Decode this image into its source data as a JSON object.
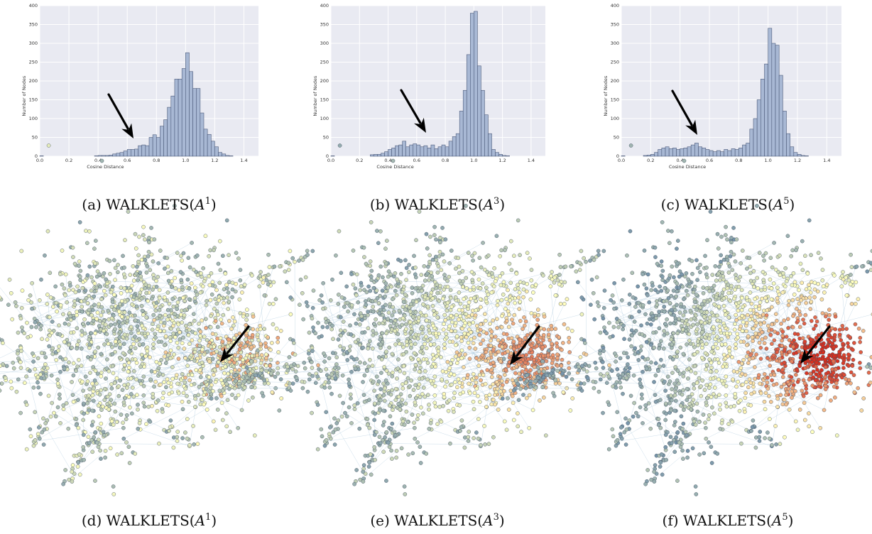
{
  "captions": {
    "a": {
      "prefix": "(a) ",
      "name": "WALKLETS",
      "base": "A",
      "sup": "1"
    },
    "b": {
      "prefix": "(b) ",
      "name": "WALKLETS",
      "base": "A",
      "sup": "3"
    },
    "c": {
      "prefix": "(c) ",
      "name": "WALKLETS",
      "base": "A",
      "sup": "5"
    },
    "d": {
      "prefix": "(d) ",
      "name": "WALKLETS",
      "base": "A",
      "sup": "1"
    },
    "e": {
      "prefix": "(e) ",
      "name": "WALKLETS",
      "base": "A",
      "sup": "3"
    },
    "f": {
      "prefix": "(f) ",
      "name": "WALKLETS",
      "base": "A",
      "sup": "5"
    }
  },
  "colors": {
    "plot_bg": "#e9eaf2",
    "grid": "#ffffff",
    "bar_fill": "#a8b8d4",
    "bar_edge": "#4c5a7a",
    "arrow": "#000000",
    "node_cool": "#5b7fa6",
    "node_mid": "#ffffbf",
    "node_hot": "#d7301f",
    "edge": "#a8c6dc"
  },
  "chart_data": [
    {
      "type": "bar",
      "panel": "a",
      "xlabel": "Cosine Distance",
      "ylabel": "Number of Nodes",
      "xlim": [
        0.0,
        1.5
      ],
      "ylim": [
        0,
        400
      ],
      "xticks": [
        "0.0",
        "0.2",
        "0.4",
        "0.6",
        "0.8",
        "1.0",
        "1.2",
        "1.4"
      ],
      "yticks": [
        "0",
        "50",
        "100",
        "150",
        "200",
        "250",
        "300",
        "350",
        "400"
      ],
      "grid": true,
      "bins": [
        0.0,
        0.025,
        0.05,
        0.075,
        0.1,
        0.125,
        0.15,
        0.175,
        0.2,
        0.225,
        0.25,
        0.275,
        0.3,
        0.325,
        0.35,
        0.375,
        0.4,
        0.425,
        0.45,
        0.475,
        0.5,
        0.525,
        0.55,
        0.575,
        0.6,
        0.625,
        0.65,
        0.675,
        0.7,
        0.725,
        0.75,
        0.775,
        0.8,
        0.825,
        0.85,
        0.875,
        0.9,
        0.925,
        0.95,
        0.975,
        1.0,
        1.025,
        1.05,
        1.075,
        1.1,
        1.125,
        1.15,
        1.175,
        1.2,
        1.225,
        1.25,
        1.275,
        1.3
      ],
      "values": [
        1,
        0,
        0,
        0,
        0,
        0,
        0,
        0,
        0,
        0,
        0,
        0,
        0,
        0,
        0,
        1,
        2,
        2,
        2,
        3,
        6,
        8,
        10,
        14,
        18,
        18,
        19,
        28,
        30,
        28,
        50,
        57,
        50,
        80,
        97,
        130,
        160,
        205,
        205,
        233,
        275,
        225,
        180,
        180,
        115,
        72,
        58,
        40,
        25,
        10,
        6,
        2,
        1
      ]
    },
    {
      "type": "bar",
      "panel": "b",
      "xlabel": "Cosine Distance",
      "ylabel": "Number of Nodes",
      "xlim": [
        0.0,
        1.5
      ],
      "ylim": [
        0,
        400
      ],
      "xticks": [
        "0.0",
        "0.2",
        "0.4",
        "0.6",
        "0.8",
        "1.0",
        "1.2",
        "1.4"
      ],
      "yticks": [
        "0",
        "50",
        "100",
        "150",
        "200",
        "250",
        "300",
        "350",
        "400"
      ],
      "grid": true,
      "bins": [
        0.0,
        0.025,
        0.05,
        0.075,
        0.1,
        0.125,
        0.15,
        0.175,
        0.2,
        0.225,
        0.25,
        0.275,
        0.3,
        0.325,
        0.35,
        0.375,
        0.4,
        0.425,
        0.45,
        0.475,
        0.5,
        0.525,
        0.55,
        0.575,
        0.6,
        0.625,
        0.65,
        0.675,
        0.7,
        0.725,
        0.75,
        0.775,
        0.8,
        0.825,
        0.85,
        0.875,
        0.9,
        0.925,
        0.95,
        0.975,
        1.0,
        1.025,
        1.05,
        1.075,
        1.1,
        1.125,
        1.15,
        1.175,
        1.2,
        1.225,
        1.25,
        1.275
      ],
      "values": [
        1,
        0,
        0,
        0,
        0,
        0,
        0,
        0,
        0,
        0,
        0,
        4,
        5,
        5,
        8,
        12,
        18,
        22,
        28,
        30,
        40,
        25,
        30,
        33,
        30,
        25,
        28,
        22,
        30,
        20,
        25,
        30,
        25,
        40,
        52,
        60,
        120,
        175,
        270,
        380,
        385,
        240,
        175,
        110,
        60,
        18,
        10,
        5,
        2,
        1,
        0,
        0
      ]
    },
    {
      "type": "bar",
      "panel": "c",
      "xlabel": "Cosine Distance",
      "ylabel": "Number of Nodes",
      "xlim": [
        0.0,
        1.5
      ],
      "ylim": [
        0,
        400
      ],
      "xticks": [
        "0.0",
        "0.2",
        "0.4",
        "0.6",
        "0.8",
        "1.0",
        "1.2",
        "1.4"
      ],
      "yticks": [
        "0",
        "50",
        "100",
        "150",
        "200",
        "250",
        "300",
        "350",
        "400"
      ],
      "grid": true,
      "bins": [
        0.0,
        0.025,
        0.05,
        0.075,
        0.1,
        0.125,
        0.15,
        0.175,
        0.2,
        0.225,
        0.25,
        0.275,
        0.3,
        0.325,
        0.35,
        0.375,
        0.4,
        0.425,
        0.45,
        0.475,
        0.5,
        0.525,
        0.55,
        0.575,
        0.6,
        0.625,
        0.65,
        0.675,
        0.7,
        0.725,
        0.75,
        0.775,
        0.8,
        0.825,
        0.85,
        0.875,
        0.9,
        0.925,
        0.95,
        0.975,
        1.0,
        1.025,
        1.05,
        1.075,
        1.1,
        1.125,
        1.15,
        1.175,
        1.2,
        1.225,
        1.25,
        1.275
      ],
      "values": [
        1,
        0,
        0,
        0,
        0,
        0,
        2,
        3,
        5,
        10,
        18,
        22,
        25,
        20,
        22,
        18,
        20,
        22,
        25,
        30,
        35,
        25,
        22,
        18,
        15,
        12,
        15,
        12,
        18,
        15,
        20,
        18,
        22,
        30,
        35,
        72,
        100,
        150,
        205,
        245,
        340,
        300,
        295,
        215,
        120,
        60,
        25,
        10,
        5,
        2,
        1,
        0
      ]
    }
  ],
  "networks": [
    {
      "panel": "d",
      "level": 1
    },
    {
      "panel": "e",
      "level": 3
    },
    {
      "panel": "f",
      "level": 5
    }
  ]
}
